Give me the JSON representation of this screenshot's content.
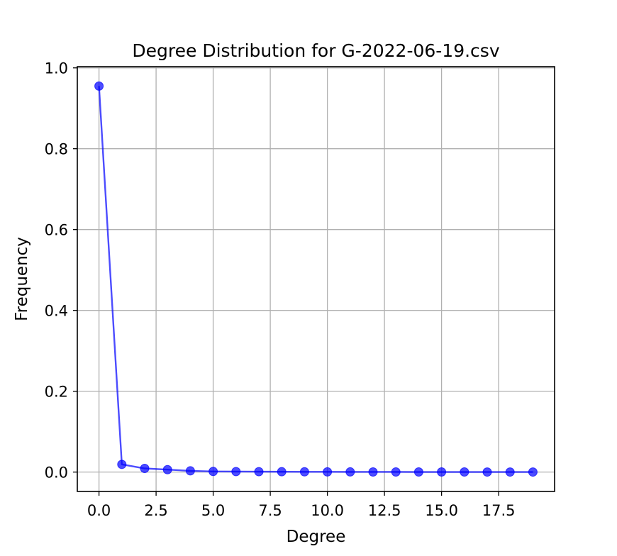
{
  "chart_data": {
    "type": "line",
    "title": "Degree Distribution for G-2022-06-19.csv",
    "xlabel": "Degree",
    "ylabel": "Frequency",
    "xlim": [
      -0.95,
      19.95
    ],
    "ylim": [
      -0.048,
      1.003
    ],
    "x_ticks": [
      0.0,
      2.5,
      5.0,
      7.5,
      10.0,
      12.5,
      15.0,
      17.5
    ],
    "x_tick_labels": [
      "0.0",
      "2.5",
      "5.0",
      "7.5",
      "10.0",
      "12.5",
      "15.0",
      "17.5"
    ],
    "y_ticks": [
      0.0,
      0.2,
      0.4,
      0.6,
      0.8,
      1.0
    ],
    "y_tick_labels": [
      "0.0",
      "0.2",
      "0.4",
      "0.6",
      "0.8",
      "1.0"
    ],
    "grid": true,
    "series": [
      {
        "color": "#0000ff",
        "marker": "circle",
        "x": [
          0,
          1,
          2,
          3,
          4,
          5,
          6,
          7,
          8,
          9,
          10,
          11,
          12,
          13,
          14,
          15,
          16,
          17,
          18,
          19
        ],
        "y": [
          0.955,
          0.019,
          0.009,
          0.006,
          0.003,
          0.0015,
          0.0012,
          0.001,
          0.0008,
          0.0006,
          0.0005,
          0.0004,
          0.0003,
          0.0003,
          0.0002,
          0.0002,
          0.0002,
          0.0001,
          0.0001,
          0.0001
        ]
      }
    ]
  }
}
